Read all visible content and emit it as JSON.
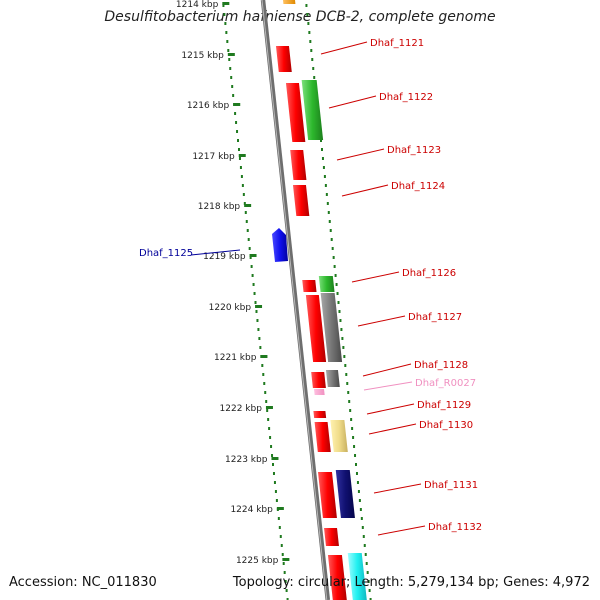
{
  "title": "Desulfitobacterium hafniense DCB-2, complete genome",
  "footer": {
    "accession": "Accession: NC_011830",
    "summary": "Topology: circular; Length: 5,279,134 bp; Genes: 4,972"
  },
  "colors": {
    "backbone": "#7a7a7a",
    "ticks": "#1f7a1f",
    "label_red": "#cc0000",
    "label_blue": "#000099",
    "label_pink": "#f090c0",
    "leader": "#cc0000"
  },
  "ruler": [
    {
      "label": "1214 kbp"
    },
    {
      "label": "1215 kbp"
    },
    {
      "label": "1216 kbp"
    },
    {
      "label": "1217 kbp"
    },
    {
      "label": "1218 kbp"
    },
    {
      "label": "1219 kbp"
    },
    {
      "label": "1220 kbp"
    },
    {
      "label": "1221 kbp"
    },
    {
      "label": "1222 kbp"
    },
    {
      "label": "1223 kbp"
    },
    {
      "label": "1224 kbp"
    },
    {
      "label": "1225 kbp"
    }
  ],
  "gene_labels": [
    {
      "text": "Dhaf_1121",
      "color": "#cc0000"
    },
    {
      "text": "Dhaf_1122",
      "color": "#cc0000"
    },
    {
      "text": "Dhaf_1123",
      "color": "#cc0000"
    },
    {
      "text": "Dhaf_1124",
      "color": "#cc0000"
    },
    {
      "text": "Dhaf_1125",
      "color": "#000099"
    },
    {
      "text": "Dhaf_1126",
      "color": "#cc0000"
    },
    {
      "text": "Dhaf_1127",
      "color": "#cc0000"
    },
    {
      "text": "Dhaf_1128",
      "color": "#cc0000"
    },
    {
      "text": "Dhaf_R0027",
      "color": "#f090c0"
    },
    {
      "text": "Dhaf_1129",
      "color": "#cc0000"
    },
    {
      "text": "Dhaf_1130",
      "color": "#cc0000"
    },
    {
      "text": "Dhaf_1131",
      "color": "#cc0000"
    },
    {
      "text": "Dhaf_1132",
      "color": "#cc0000"
    }
  ]
}
